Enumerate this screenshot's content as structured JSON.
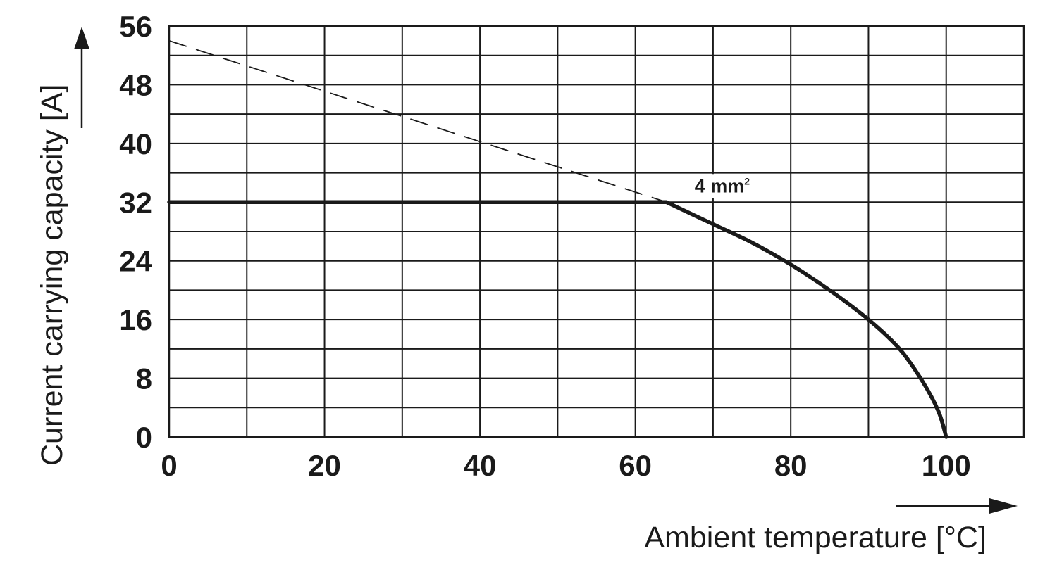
{
  "chart_data": {
    "type": "line",
    "xlabel": "Ambient temperature [°C]",
    "ylabel": "Current carrying capacity [A]",
    "xlim": [
      0,
      110
    ],
    "ylim": [
      0,
      56
    ],
    "x_ticks": [
      0,
      20,
      40,
      60,
      80,
      100
    ],
    "y_ticks": [
      0,
      8,
      16,
      24,
      32,
      40,
      48,
      56
    ],
    "x_grid_step": 10,
    "y_grid_step": 4,
    "grid": true,
    "series": [
      {
        "name": "4 mm",
        "name_superscript": "2",
        "style": "solid-thick",
        "x": [
          0,
          64,
          70,
          75,
          80,
          85,
          90,
          94,
          97,
          99,
          100
        ],
        "y": [
          32,
          32,
          29,
          26.5,
          23.5,
          20,
          16,
          12,
          7.5,
          3.5,
          0
        ]
      },
      {
        "name": "",
        "style": "dashed",
        "x": [
          0,
          64
        ],
        "y": [
          54,
          32
        ]
      }
    ]
  }
}
